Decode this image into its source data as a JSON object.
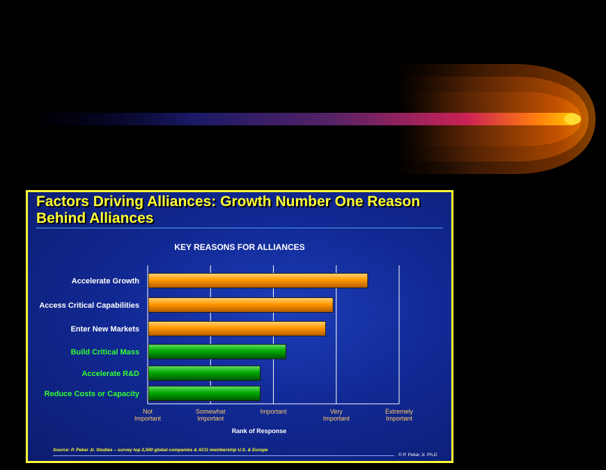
{
  "slide": {
    "title": "Factors Driving Alliances: Growth Number One Reason Behind Alliances",
    "source": "Source:  P. Pekar Jr. Studies – survey top 2,500 global companies & ACG membership U.S. & Europe",
    "copyright": "© P. Pekar Jr. Ph.D"
  },
  "colors": {
    "frame": "#ffff33",
    "bar_orange": "#ff9900",
    "bar_green": "#00aa00",
    "label_white": "#ffffff",
    "label_green": "#33ff33",
    "tick_label": "#ffcc66"
  },
  "chart_data": {
    "type": "bar",
    "orientation": "horizontal",
    "title": "KEY REASONS FOR ALLIANCES",
    "xlabel": "Rank of Response",
    "x_scale": [
      1,
      5
    ],
    "x_ticks": [
      "Not Important",
      "Somewhat Important",
      "Important",
      "Very Important",
      "Extremely Important"
    ],
    "grid": true,
    "categories": [
      "Accelerate Growth",
      "Access Critical Capabilities",
      "Enter New Markets",
      "Build Critical Mass",
      "Accelerate R&D",
      "Reduce Costs or Capacity"
    ],
    "values": [
      4.5,
      3.95,
      3.83,
      3.2,
      2.79,
      2.79
    ],
    "bar_colors": [
      "orange",
      "orange",
      "orange",
      "green",
      "green",
      "green"
    ]
  }
}
